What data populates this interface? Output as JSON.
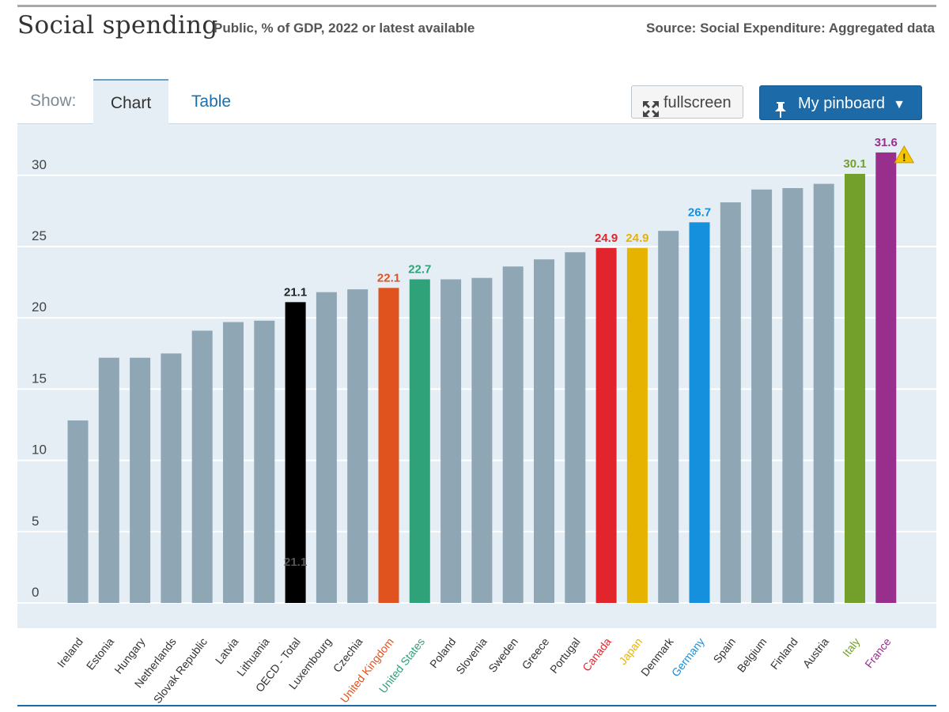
{
  "header": {
    "title": "Social spending",
    "subtitle": "Public, % of GDP, 2022 or latest available",
    "source": "Source: Social Expenditure: Aggregated data"
  },
  "toolbar": {
    "show_label": "Show:",
    "tab_chart": "Chart",
    "tab_table": "Table",
    "fullscreen_label": "fullscreen",
    "pinboard_label": "My pinboard",
    "pinboard_caret": "▼"
  },
  "colors": {
    "default_bar": "#8fa6b4",
    "OECD - Total": "#000000",
    "United Kingdom": "#e0531f",
    "United States": "#2fa27a",
    "Canada": "#e2252c",
    "Japan": "#e6b400",
    "Germany": "#1590dc",
    "Italy": "#73a02a",
    "France": "#982f8c",
    "warning": "#f6c500"
  },
  "chart_data": {
    "type": "bar",
    "title": "Social spending",
    "ylabel": "",
    "xlabel": "",
    "ylim": [
      0,
      33
    ],
    "yticks": [
      0,
      5,
      10,
      15,
      20,
      25,
      30
    ],
    "grid": true,
    "categories": [
      "Ireland",
      "Estonia",
      "Hungary",
      "Netherlands",
      "Slovak Republic",
      "Latvia",
      "Lithuania",
      "OECD - Total",
      "Luxembourg",
      "Czechia",
      "United Kingdom",
      "United States",
      "Poland",
      "Slovenia",
      "Sweden",
      "Greece",
      "Portugal",
      "Canada",
      "Japan",
      "Denmark",
      "Germany",
      "Spain",
      "Belgium",
      "Finland",
      "Austria",
      "Italy",
      "France"
    ],
    "values": [
      12.8,
      17.2,
      17.2,
      17.5,
      19.1,
      19.7,
      19.8,
      21.1,
      21.8,
      22.0,
      22.1,
      22.7,
      22.7,
      22.8,
      23.6,
      24.1,
      24.6,
      24.9,
      24.9,
      26.1,
      26.7,
      28.1,
      29.0,
      29.1,
      29.4,
      30.1,
      31.6
    ],
    "labeled": [
      "OECD - Total",
      "United Kingdom",
      "United States",
      "Canada",
      "Japan",
      "Germany",
      "Italy",
      "France"
    ],
    "value_labels": {
      "OECD - Total": "21.1",
      "United Kingdom": "22.1",
      "United States": "22.7",
      "Canada": "24.9",
      "Japan": "24.9",
      "Germany": "26.7",
      "Italy": "30.1",
      "France": "31.6"
    },
    "inner_label": {
      "category": "OECD - Total",
      "text": "21.1"
    },
    "warning_on": "France"
  }
}
